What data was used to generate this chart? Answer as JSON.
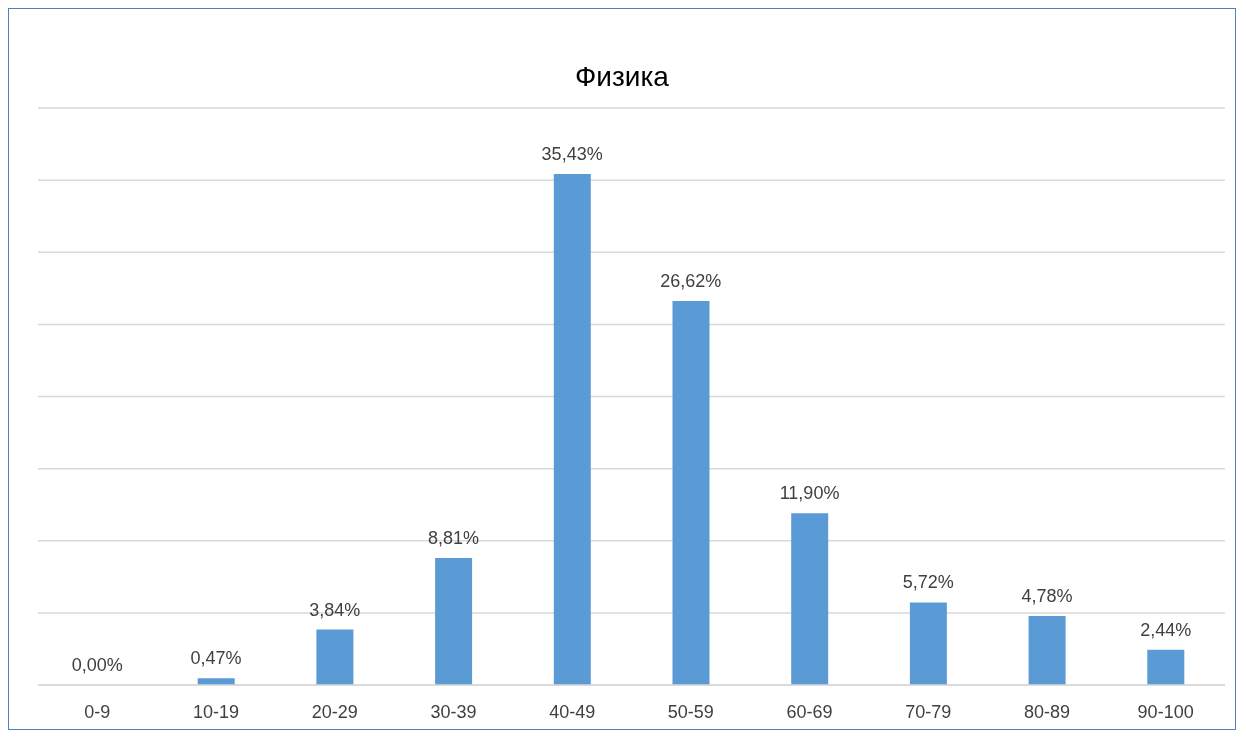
{
  "chart_data": {
    "type": "bar",
    "title": "Физика",
    "categories": [
      "0-9",
      "10-19",
      "20-29",
      "30-39",
      "40-49",
      "50-59",
      "60-69",
      "70-79",
      "80-89",
      "90-100"
    ],
    "values": [
      0,
      0.47,
      3.84,
      8.81,
      35.43,
      26.62,
      11.9,
      5.72,
      4.78,
      2.44
    ],
    "value_labels": [
      "0,00%",
      "0,47%",
      "3,84%",
      "8,81%",
      "35,43%",
      "26,62%",
      "11,90%",
      "5,72%",
      "4,78%",
      "2,44%"
    ],
    "color": "#5b9bd5",
    "ylim": [
      0,
      40
    ],
    "yticks": [
      {
        "value": 0,
        "label": null
      },
      {
        "value": 5,
        "label": null
      },
      {
        "value": 10,
        "label": null
      },
      {
        "value": 15,
        "label": null
      },
      {
        "value": 20,
        "label": null
      },
      {
        "value": 25,
        "label": null
      },
      {
        "value": 30,
        "label": null
      },
      {
        "value": 35,
        "label": null
      },
      {
        "value": 40,
        "label": null
      }
    ],
    "tick_labels": "x",
    "grid": "y",
    "legend": false
  }
}
